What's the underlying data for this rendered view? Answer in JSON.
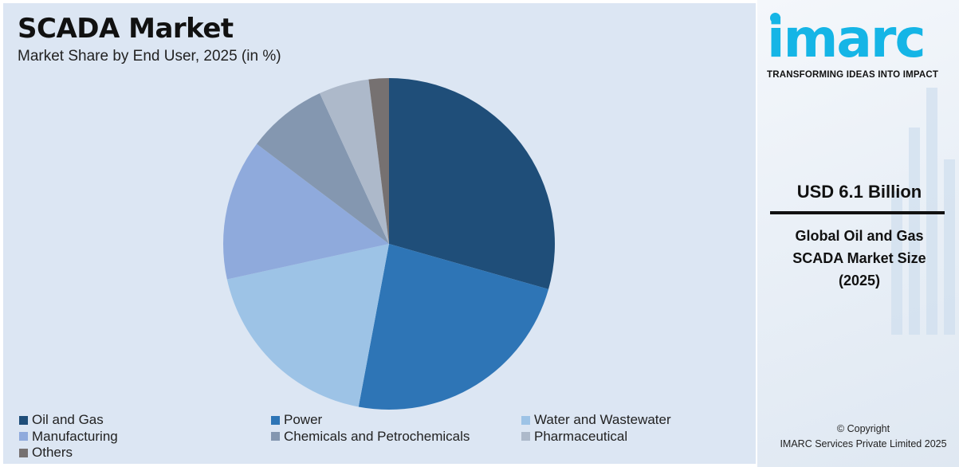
{
  "header": {
    "title": "SCADA Market",
    "subtitle": "Market Share by End User, 2025 (in %)"
  },
  "chart_data": {
    "type": "pie",
    "categories": [
      "Oil and Gas",
      "Power",
      "Water and Wastewater",
      "Manufacturing",
      "Chemicals and Petrochemicals",
      "Pharmaceutical",
      "Others"
    ],
    "values": [
      30,
      24,
      19,
      14,
      8,
      5,
      2
    ],
    "colors": [
      "#1f4e79",
      "#2e75b6",
      "#9dc3e6",
      "#8faadc",
      "#8497b0",
      "#adb9ca",
      "#767171"
    ],
    "legend_position": "bottom"
  },
  "legend": {
    "items": [
      {
        "label": "Oil and Gas",
        "color": "#1f4e79"
      },
      {
        "label": "Power",
        "color": "#2e75b6"
      },
      {
        "label": "Water and Wastewater",
        "color": "#9dc3e6"
      },
      {
        "label": "Manufacturing",
        "color": "#8faadc"
      },
      {
        "label": "Chemicals and Petrochemicals",
        "color": "#8497b0"
      },
      {
        "label": "Pharmaceutical",
        "color": "#adb9ca"
      },
      {
        "label": "Others",
        "color": "#767171"
      }
    ]
  },
  "brand": {
    "logo": "imarc",
    "tagline": "TRANSFORMING IDEAS INTO IMPACT",
    "accent": "#15b5e6"
  },
  "stat": {
    "value": "USD 6.1 Billion",
    "line1": "Global Oil and Gas",
    "line2": "SCADA Market Size",
    "line3": "(2025)"
  },
  "footer": {
    "line1": "© Copyright",
    "line2": "IMARC Services Private Limited 2025"
  }
}
